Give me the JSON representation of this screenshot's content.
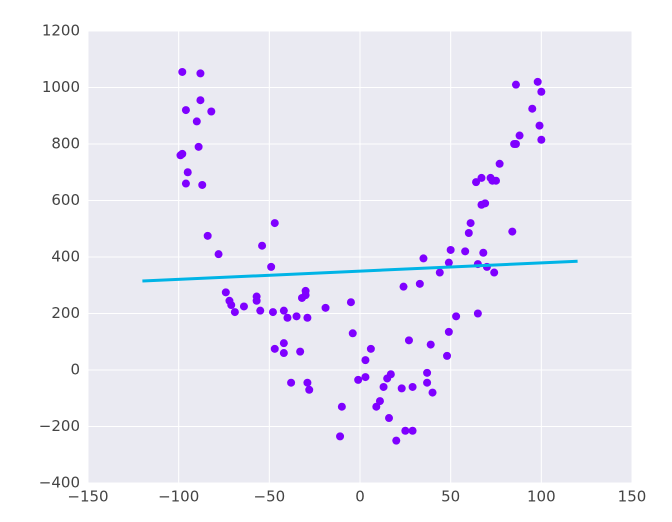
{
  "chart_data": {
    "type": "scatter",
    "xlim": [
      -150,
      150
    ],
    "ylim": [
      -400,
      1200
    ],
    "xticks": [
      {
        "value": -150,
        "label": "−150"
      },
      {
        "value": -100,
        "label": "−100"
      },
      {
        "value": -50,
        "label": "−50"
      },
      0,
      50,
      100,
      150
    ],
    "yticks": [
      {
        "value": -400,
        "label": "−400"
      },
      {
        "value": -200,
        "label": "−200"
      },
      0,
      200,
      400,
      600,
      800,
      1000,
      1200
    ],
    "grid": true,
    "series": [
      {
        "mode": "markers",
        "color": "#7f00ff",
        "x": [
          -98,
          -88,
          -96,
          -88,
          -82,
          -90,
          -89,
          -99,
          -98,
          -95,
          -96,
          -87,
          -84,
          -78,
          -74,
          -72,
          -71,
          -69,
          -64,
          -57,
          -57,
          -55,
          -54,
          -49,
          -47,
          -48,
          -47,
          -42,
          -42,
          -42,
          -40,
          -38,
          -35,
          -33,
          -32,
          -30,
          -30,
          -29,
          -29,
          -28,
          -19,
          -10,
          -11,
          -5,
          -4,
          -1,
          3,
          3,
          6,
          9,
          11,
          13,
          15,
          16,
          17,
          20,
          23,
          24,
          25,
          27,
          29,
          29,
          33,
          35,
          37,
          37,
          39,
          40,
          44,
          48,
          49,
          49,
          50,
          53,
          58,
          60,
          61,
          64,
          65,
          65,
          67,
          67,
          69,
          68,
          70,
          72,
          73,
          74,
          75,
          77,
          84,
          85,
          86,
          86,
          88,
          95,
          98,
          100,
          99,
          100
        ],
        "values": [
          1055,
          1050,
          920,
          955,
          915,
          880,
          790,
          760,
          765,
          700,
          660,
          655,
          475,
          410,
          275,
          245,
          230,
          205,
          225,
          260,
          245,
          210,
          440,
          365,
          520,
          205,
          75,
          210,
          95,
          60,
          185,
          -45,
          190,
          65,
          255,
          280,
          265,
          185,
          -45,
          -70,
          220,
          -130,
          -235,
          240,
          130,
          -35,
          35,
          -25,
          75,
          -130,
          -110,
          -60,
          -30,
          -170,
          -15,
          -250,
          -65,
          295,
          -215,
          105,
          -215,
          -60,
          305,
          395,
          -45,
          -10,
          90,
          -80,
          345,
          50,
          135,
          380,
          425,
          190,
          420,
          485,
          520,
          665,
          200,
          375,
          680,
          585,
          590,
          415,
          365,
          680,
          670,
          345,
          670,
          730,
          490,
          800,
          800,
          1010,
          830,
          925,
          1020,
          985,
          865,
          815
        ]
      },
      {
        "mode": "line",
        "color": "#00b4e6",
        "x": [
          -120,
          120
        ],
        "values": [
          315,
          385
        ]
      }
    ]
  }
}
